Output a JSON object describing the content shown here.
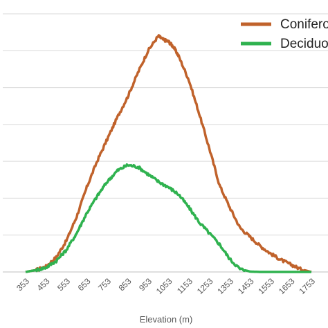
{
  "chart_data": {
    "type": "line",
    "xlabel": "Elevation (m)",
    "ylabel": "",
    "x_tick_labels": [
      "353",
      "453",
      "553",
      "653",
      "753",
      "853",
      "953",
      "1053",
      "1153",
      "1253",
      "1353",
      "1453",
      "1553",
      "1653",
      "1753"
    ],
    "xlim": [
      353,
      1753
    ],
    "ylim": [
      0,
      7
    ],
    "grid": true,
    "legend_position": "top-right",
    "series": [
      {
        "name": "Coniferous",
        "color": "#c0622b",
        "x": [
          353,
          403,
          453,
          503,
          553,
          603,
          653,
          703,
          753,
          803,
          853,
          903,
          953,
          1003,
          1028,
          1053,
          1078,
          1103,
          1153,
          1203,
          1253,
          1303,
          1353,
          1403,
          1453,
          1503,
          1553,
          1603,
          1653,
          1703,
          1753
        ],
        "y": [
          0,
          0.05,
          0.15,
          0.4,
          0.85,
          1.5,
          2.3,
          3.0,
          3.6,
          4.2,
          4.75,
          5.4,
          6.0,
          6.4,
          6.3,
          6.25,
          6.1,
          5.85,
          5.2,
          4.3,
          3.35,
          2.35,
          1.75,
          1.2,
          0.95,
          0.7,
          0.5,
          0.33,
          0.2,
          0.07,
          0.0
        ]
      },
      {
        "name": "Deciduous",
        "color": "#2fb24f",
        "x": [
          353,
          403,
          453,
          503,
          553,
          603,
          653,
          703,
          753,
          803,
          853,
          903,
          953,
          1003,
          1053,
          1103,
          1153,
          1203,
          1253,
          1303,
          1353,
          1403,
          1453,
          1503,
          1553,
          1653,
          1753
        ],
        "y": [
          0,
          0.05,
          0.12,
          0.3,
          0.6,
          1.05,
          1.6,
          2.05,
          2.45,
          2.75,
          2.9,
          2.85,
          2.65,
          2.45,
          2.3,
          2.1,
          1.75,
          1.35,
          1.05,
          0.75,
          0.35,
          0.08,
          0.01,
          0,
          0,
          0,
          0
        ]
      }
    ]
  }
}
